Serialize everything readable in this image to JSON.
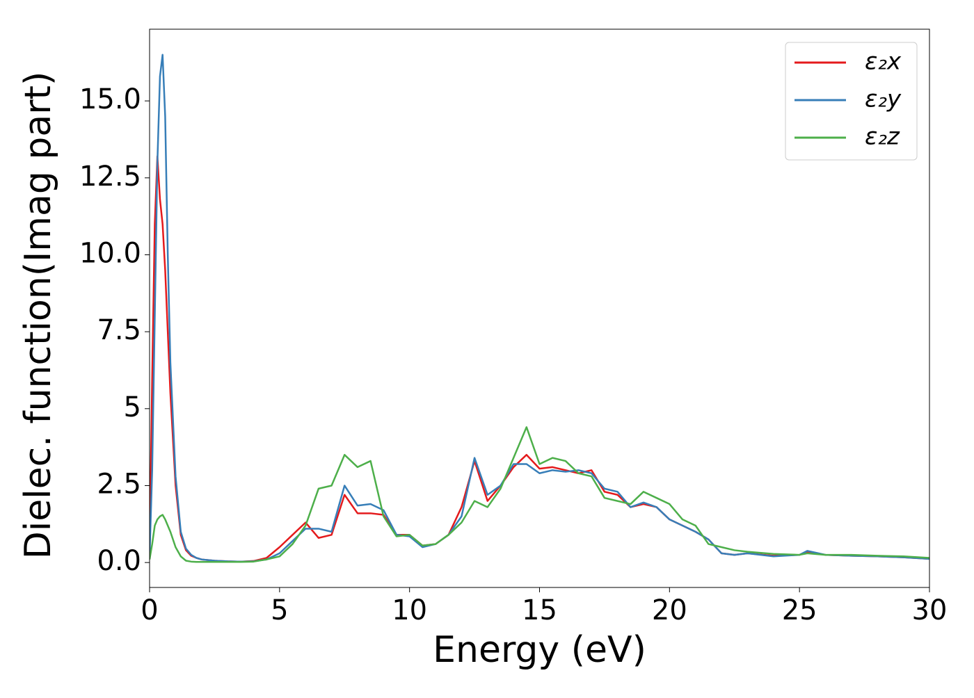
{
  "chart_data": {
    "type": "line",
    "xlabel": "Energy (eV)",
    "ylabel": "Dielec. function(Imag part)",
    "xlim": [
      0,
      30
    ],
    "ylim": [
      -0.81,
      17.33
    ],
    "xticks": [
      0,
      5,
      10,
      15,
      20,
      25,
      30
    ],
    "yticks": [
      {
        "value": 0,
        "label": "0.0"
      },
      2.5,
      5.0,
      7.5,
      {
        "value": 10,
        "label": "10.0"
      },
      12.5,
      {
        "value": 15,
        "label": "15.0"
      }
    ],
    "legend": "upper right",
    "x": [
      0,
      0.1,
      0.2,
      0.3,
      0.4,
      0.5,
      0.6,
      0.7,
      0.8,
      1.0,
      1.2,
      1.4,
      1.6,
      1.8,
      2.0,
      2.5,
      3,
      3.5,
      4,
      4.5,
      5,
      5.5,
      6,
      6.5,
      7,
      7.5,
      8,
      8.5,
      9,
      9.5,
      10,
      10.5,
      11,
      11.5,
      12,
      12.5,
      13,
      13.5,
      14,
      14.5,
      15,
      15.5,
      16,
      16.5,
      17,
      17.5,
      18,
      18.5,
      19,
      19.5,
      20,
      20.5,
      21,
      21.5,
      22,
      22.5,
      23,
      24,
      25,
      25.3,
      26,
      27,
      28,
      29,
      30
    ],
    "series": [
      {
        "name": "ε₂x",
        "color": "#e41a1c",
        "values": [
          0.2,
          6,
          11,
          13.2,
          11.8,
          11,
          9.5,
          7.5,
          5.5,
          2.5,
          0.9,
          0.4,
          0.22,
          0.15,
          0.1,
          0.06,
          0.04,
          0.03,
          0.05,
          0.15,
          0.5,
          0.9,
          1.3,
          0.8,
          0.9,
          2.2,
          1.6,
          1.6,
          1.55,
          0.9,
          0.9,
          0.55,
          0.6,
          0.9,
          1.8,
          3.3,
          2.0,
          2.5,
          3.1,
          3.5,
          3.05,
          3.1,
          3.0,
          2.9,
          3.0,
          2.3,
          2.2,
          1.8,
          1.9,
          1.8,
          1.4,
          1.2,
          1.0,
          0.75,
          0.3,
          0.25,
          0.3,
          0.22,
          0.25,
          0.35,
          0.25,
          0.22,
          0.2,
          0.17,
          0.12
        ]
      },
      {
        "name": "ε₂y",
        "color": "#377eb8",
        "values": [
          0.2,
          3,
          8,
          13,
          15.8,
          16.5,
          14.5,
          10,
          6.5,
          2.8,
          1.0,
          0.45,
          0.25,
          0.15,
          0.1,
          0.06,
          0.04,
          0.03,
          0.04,
          0.1,
          0.3,
          0.7,
          1.1,
          1.1,
          1.0,
          2.5,
          1.85,
          1.9,
          1.7,
          0.9,
          0.85,
          0.5,
          0.6,
          0.9,
          1.5,
          3.4,
          2.2,
          2.5,
          3.2,
          3.2,
          2.9,
          3.0,
          2.95,
          3.0,
          2.9,
          2.4,
          2.3,
          1.8,
          1.95,
          1.8,
          1.4,
          1.2,
          1.0,
          0.75,
          0.3,
          0.25,
          0.3,
          0.2,
          0.25,
          0.38,
          0.25,
          0.22,
          0.2,
          0.17,
          0.12
        ]
      },
      {
        "name": "ε₂z",
        "color": "#4daf4a",
        "values": [
          0.1,
          0.6,
          1.2,
          1.4,
          1.5,
          1.55,
          1.4,
          1.2,
          1.0,
          0.5,
          0.2,
          0.06,
          0.03,
          0.02,
          0.02,
          0.02,
          0.02,
          0.02,
          0.03,
          0.1,
          0.2,
          0.6,
          1.2,
          2.4,
          2.5,
          3.5,
          3.1,
          3.3,
          1.5,
          0.85,
          0.9,
          0.55,
          0.6,
          0.9,
          1.3,
          2.0,
          1.8,
          2.4,
          3.4,
          4.4,
          3.2,
          3.4,
          3.3,
          2.9,
          2.8,
          2.1,
          2.0,
          1.9,
          2.3,
          2.1,
          1.9,
          1.4,
          1.2,
          0.6,
          0.5,
          0.4,
          0.35,
          0.28,
          0.25,
          0.3,
          0.25,
          0.25,
          0.22,
          0.2,
          0.15
        ]
      }
    ]
  }
}
